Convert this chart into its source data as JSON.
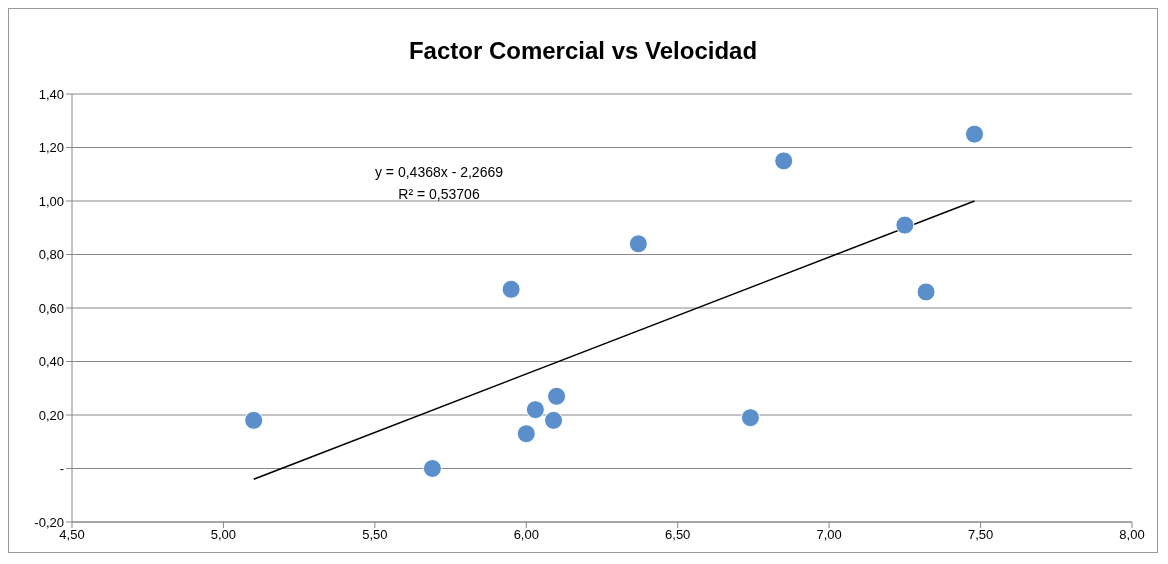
{
  "chart_data": {
    "type": "scatter",
    "title": "Factor Comercial vs Velocidad",
    "series": [
      {
        "marker": "circle",
        "color": "#5b8fcc",
        "x": [
          5.1,
          5.69,
          6.0,
          5.95,
          6.03,
          6.09,
          6.1,
          6.37,
          6.74,
          6.85,
          7.25,
          7.32,
          7.48
        ],
        "values": [
          0.18,
          0.0,
          0.13,
          0.67,
          0.22,
          0.18,
          0.27,
          0.84,
          0.19,
          1.15,
          0.91,
          0.66,
          1.25
        ]
      },
      {
        "type": "line",
        "marker": "none",
        "color": "#000000",
        "x": [
          5.1,
          7.48
        ],
        "values": [
          -0.04,
          1.0
        ]
      }
    ],
    "xlim": [
      4.5,
      8.0
    ],
    "xticks": [
      {
        "value": 4.5,
        "label": "4,50"
      },
      {
        "value": 5.0,
        "label": "5,00"
      },
      {
        "value": 5.5,
        "label": "5,50"
      },
      {
        "value": 6.0,
        "label": "6,00"
      },
      {
        "value": 6.5,
        "label": "6,50"
      },
      {
        "value": 7.0,
        "label": "7,00"
      },
      {
        "value": 7.5,
        "label": "7,50"
      },
      {
        "value": 8.0,
        "label": "8,00"
      }
    ],
    "ylim": [
      -0.2,
      1.4
    ],
    "yticks": [
      {
        "value": -0.2,
        "label": "-0,20"
      },
      {
        "value": 0,
        "label": "-"
      },
      {
        "value": 0.2,
        "label": "0,20"
      },
      {
        "value": 0.4,
        "label": "0,40"
      },
      {
        "value": 0.6,
        "label": "0,60"
      },
      {
        "value": 0.8,
        "label": "0,80"
      },
      {
        "value": 1.0,
        "label": "1,00"
      },
      {
        "value": 1.2,
        "label": "1,20"
      },
      {
        "value": 1.4,
        "label": "1,40"
      }
    ],
    "grid": "y",
    "annotations": [
      "y = 0,4368x - 2,2669",
      "R² = 0,53706"
    ]
  }
}
